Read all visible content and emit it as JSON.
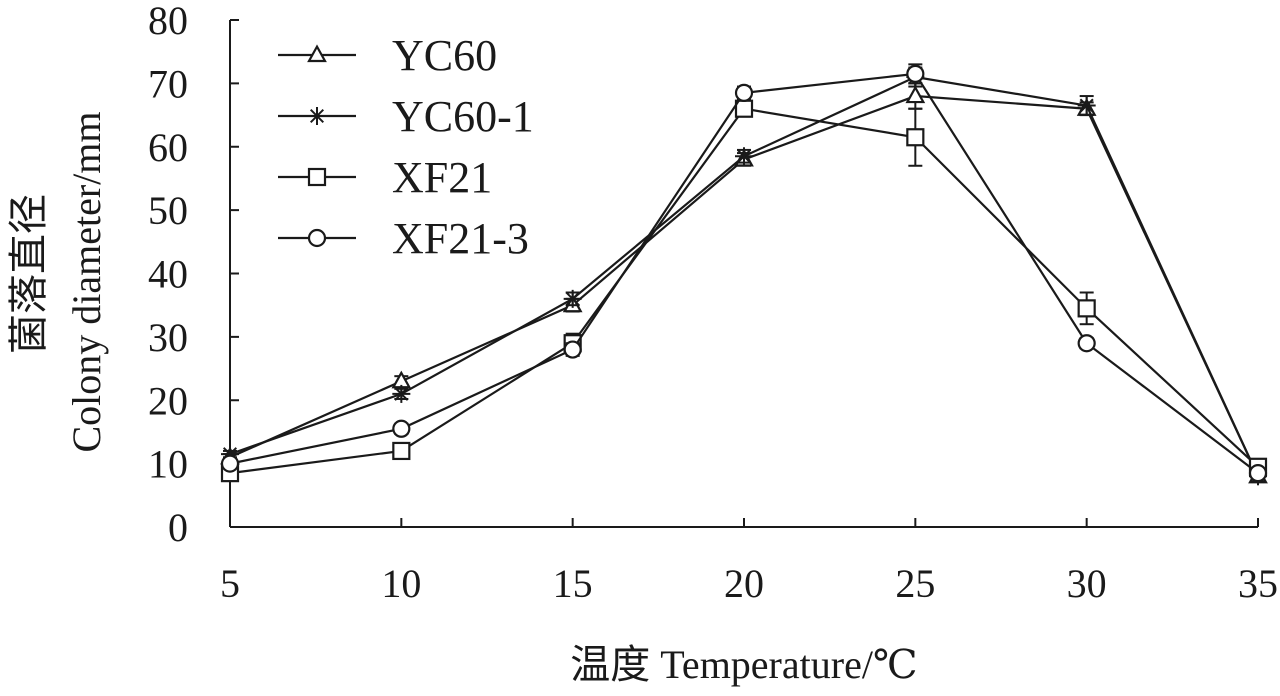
{
  "chart_data": {
    "type": "line",
    "xlabel": "温度 Temperature/℃",
    "ylabel_cn": "菌落直径",
    "ylabel_en": "Colony diameter/mm",
    "xlim": [
      5,
      35
    ],
    "ylim": [
      0,
      80
    ],
    "x_ticks": [
      5,
      10,
      15,
      20,
      25,
      30,
      35
    ],
    "y_ticks": [
      0,
      10,
      20,
      30,
      40,
      50,
      60,
      70,
      80
    ],
    "grid": false,
    "legend_position": "top-left",
    "x": [
      5,
      10,
      15,
      20,
      25,
      30,
      35
    ],
    "series": [
      {
        "name": "YC60",
        "marker": "triangle",
        "values": [
          11,
          23,
          35,
          58,
          68,
          66,
          8
        ],
        "errors": [
          0.5,
          0.8,
          1.0,
          1.0,
          2.0,
          1.0,
          0.5
        ]
      },
      {
        "name": "YC60-1",
        "marker": "asterisk",
        "values": [
          11.5,
          21,
          36,
          58.5,
          71,
          66.5,
          8
        ],
        "errors": [
          0.5,
          0.8,
          1.0,
          1.0,
          1.5,
          1.5,
          0.5
        ]
      },
      {
        "name": "XF21",
        "marker": "square",
        "values": [
          8.5,
          12,
          29,
          66,
          61.5,
          34.5,
          9.5
        ],
        "errors": [
          0.5,
          0.8,
          1.5,
          1.0,
          4.5,
          2.5,
          0.5
        ]
      },
      {
        "name": "XF21-3",
        "marker": "circle",
        "values": [
          10,
          15.5,
          28,
          68.5,
          71.5,
          29,
          8.5
        ],
        "errors": [
          0.5,
          0.8,
          1.0,
          1.0,
          1.5,
          0.8,
          0.5
        ]
      }
    ]
  }
}
